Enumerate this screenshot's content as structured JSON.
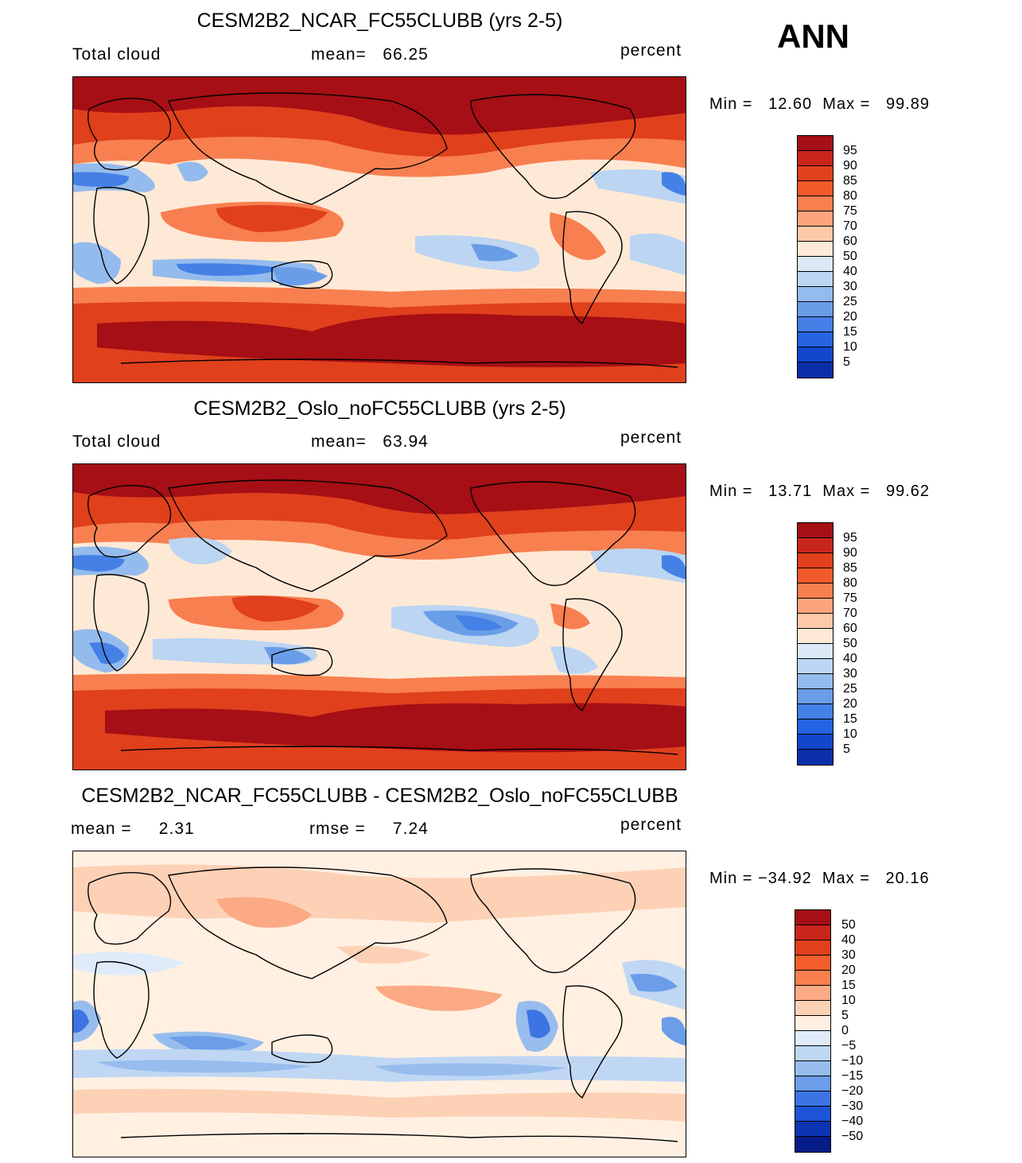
{
  "season": "ANN",
  "colors": {
    "seq": [
      "#a50f15",
      "#c8261a",
      "#e0401c",
      "#f25a2c",
      "#f87f50",
      "#fca47e",
      "#fdc9a8",
      "#fee9d6",
      "#dbe9f7",
      "#bcd5f2",
      "#94bbed",
      "#6a9de8",
      "#4480e6",
      "#2563e0",
      "#1247cc",
      "#0a2fa8",
      "#061b82"
    ],
    "diff": [
      "#a50f15",
      "#c8261a",
      "#e0401c",
      "#f45d2c",
      "#f8804f",
      "#fcaa85",
      "#fdd1b6",
      "#fff0e2",
      "#dfebf8",
      "#bfd7f3",
      "#97bdee",
      "#6b9de9",
      "#3c74e3",
      "#1e55d6",
      "#0c35b3",
      "#061c88"
    ]
  },
  "panels": [
    {
      "title": "CESM2B2_NCAR_FC55CLUBB (yrs 2-5)",
      "left_label": "Total cloud",
      "center_label": "mean=   66.25",
      "units": "percent",
      "minmax": "Min =   12.60  Max =   99.89",
      "levels": [
        "95",
        "90",
        "85",
        "80",
        "75",
        "70",
        "60",
        "50",
        "40",
        "30",
        "25",
        "20",
        "15",
        "10",
        "5"
      ]
    },
    {
      "title": "CESM2B2_Oslo_noFC55CLUBB (yrs 2-5)",
      "left_label": "Total cloud",
      "center_label": "mean=   63.94",
      "units": "percent",
      "minmax": "Min =   13.71  Max =   99.62",
      "levels": [
        "95",
        "90",
        "85",
        "80",
        "75",
        "70",
        "60",
        "50",
        "40",
        "30",
        "25",
        "20",
        "15",
        "10",
        "5"
      ]
    },
    {
      "title": "CESM2B2_NCAR_FC55CLUBB - CESM2B2_Oslo_noFC55CLUBB",
      "left_label": "mean =     2.31",
      "center_label": "rmse =     7.24",
      "units": "percent",
      "minmax": "Min = −34.92  Max =   20.16",
      "levels": [
        "50",
        "40",
        "30",
        "20",
        "15",
        "10",
        "5",
        "0",
        "−5",
        "−10",
        "−15",
        "−20",
        "−30",
        "−40",
        "−50"
      ]
    }
  ]
}
